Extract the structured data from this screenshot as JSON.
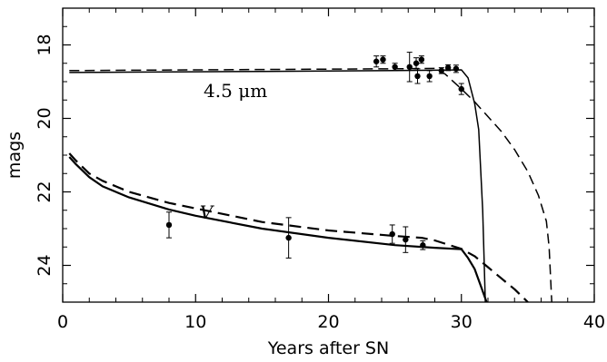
{
  "chart_data": {
    "type": "line",
    "xlabel": "Years after SN",
    "ylabel": "mags",
    "xlim": [
      0,
      40
    ],
    "ylim": [
      25,
      17
    ],
    "y_inverted": true,
    "xticks": [
      0,
      10,
      20,
      30,
      40
    ],
    "yticks": [
      18,
      20,
      22,
      24
    ],
    "grid": false,
    "annotations": [
      {
        "text": "4.5 μm",
        "x": 13,
        "y": 19.25
      },
      {
        "text": "V",
        "x": 10.8,
        "y": 22.55
      }
    ],
    "series": [
      {
        "band": "4.5 μm",
        "style": "solid",
        "x": [
          0.5,
          5,
          10,
          15,
          20,
          25,
          28,
          30,
          30.5,
          31,
          31.3,
          31.6,
          31.8
        ],
        "y": [
          18.75,
          18.74,
          18.73,
          18.72,
          18.71,
          18.7,
          18.69,
          18.68,
          18.9,
          19.6,
          20.3,
          22.5,
          25
        ]
      },
      {
        "band": "4.5 μm",
        "style": "dashed",
        "x": [
          0.5,
          5,
          10,
          15,
          20,
          25,
          28,
          28.8,
          30,
          31,
          32,
          33,
          34,
          35,
          35.8,
          36.4,
          36.6,
          36.8
        ],
        "y": [
          18.7,
          18.69,
          18.68,
          18.67,
          18.66,
          18.65,
          18.64,
          18.8,
          19.2,
          19.55,
          19.95,
          20.35,
          20.85,
          21.45,
          22.1,
          22.8,
          23.5,
          25
        ]
      },
      {
        "band": "V",
        "style": "solid",
        "x": [
          0.5,
          1,
          2,
          3,
          5,
          8,
          10,
          15,
          20,
          25,
          28,
          30,
          30.5,
          31,
          31.5,
          31.9
        ],
        "y": [
          21.05,
          21.25,
          21.6,
          21.85,
          22.15,
          22.48,
          22.65,
          23.0,
          23.25,
          23.45,
          23.52,
          23.56,
          23.8,
          24.1,
          24.6,
          25
        ]
      },
      {
        "band": "V",
        "style": "dashed",
        "x": [
          0.5,
          1,
          2,
          3,
          5,
          8,
          10,
          15,
          20,
          25,
          27,
          28,
          30,
          31,
          32,
          33,
          34,
          35
        ],
        "y": [
          20.95,
          21.15,
          21.5,
          21.7,
          22.0,
          22.3,
          22.45,
          22.82,
          23.05,
          23.2,
          23.25,
          23.32,
          23.55,
          23.75,
          24.05,
          24.35,
          24.65,
          25
        ]
      }
    ],
    "observations": [
      {
        "band": "4.5 μm",
        "x": 23.6,
        "y": 18.45,
        "err": 0.15
      },
      {
        "band": "4.5 μm",
        "x": 24.1,
        "y": 18.4,
        "err": 0.1
      },
      {
        "band": "4.5 μm",
        "x": 25.0,
        "y": 18.6,
        "err": 0.1
      },
      {
        "band": "4.5 μm",
        "x": 26.1,
        "y": 18.6,
        "err": 0.4
      },
      {
        "band": "4.5 μm",
        "x": 26.6,
        "y": 18.5,
        "err": 0.15
      },
      {
        "band": "4.5 μm",
        "x": 26.7,
        "y": 18.85,
        "err": 0.2
      },
      {
        "band": "4.5 μm",
        "x": 27.0,
        "y": 18.4,
        "err": 0.1
      },
      {
        "band": "4.5 μm",
        "x": 27.6,
        "y": 18.85,
        "err": 0.15
      },
      {
        "band": "4.5 μm",
        "x": 28.5,
        "y": 18.7,
        "err": 0.08
      },
      {
        "band": "4.5 μm",
        "x": 29.0,
        "y": 18.62,
        "err": 0.08
      },
      {
        "band": "4.5 μm",
        "x": 29.6,
        "y": 18.65,
        "err": 0.1
      },
      {
        "band": "4.5 μm",
        "x": 30.0,
        "y": 19.2,
        "err": 0.15
      },
      {
        "band": "V",
        "x": 8.0,
        "y": 22.9,
        "err": 0.35
      },
      {
        "band": "V",
        "x": 17.0,
        "y": 23.25,
        "err": 0.55
      },
      {
        "band": "V",
        "x": 24.8,
        "y": 23.15,
        "err": 0.25
      },
      {
        "band": "V",
        "x": 25.8,
        "y": 23.3,
        "err": 0.35
      },
      {
        "band": "V",
        "x": 27.1,
        "y": 23.45,
        "err": 0.12
      }
    ]
  }
}
